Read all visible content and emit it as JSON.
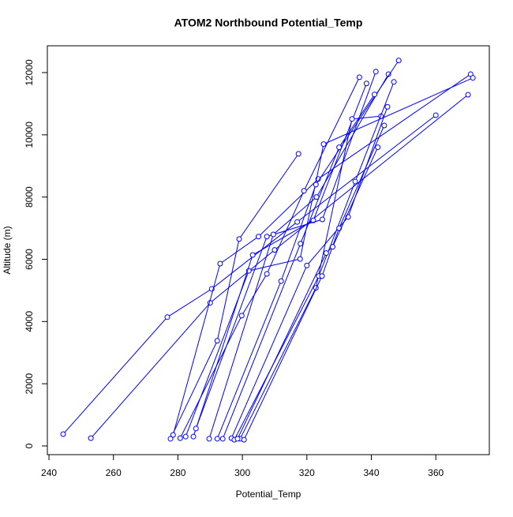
{
  "chart_data": {
    "type": "line",
    "title": "ATOM2 Northbound Potential_Temp",
    "xlabel": "Potential_Temp",
    "ylabel": "Altitude (m)",
    "xlim": [
      239.5,
      376.6
    ],
    "ylim": [
      -279,
      12862
    ],
    "xticks": [
      240,
      260,
      280,
      300,
      320,
      340,
      360
    ],
    "yticks": [
      0,
      2000,
      4000,
      6000,
      8000,
      10000,
      12000
    ],
    "marker": "circle",
    "grid": false,
    "series": [
      {
        "color": "#0000ff",
        "x": [
          244.4,
          276.7,
          290.5,
          317,
          360
        ],
        "values": [
          380,
          4140,
          5050,
          7200,
          10630
        ]
      },
      {
        "color": "#0000ff",
        "x": [
          253,
          290,
          310,
          370
        ],
        "values": [
          250,
          4600,
          6300,
          11290
        ]
      },
      {
        "color": "#0000ff",
        "x": [
          277.7,
          292.2,
          299,
          317.4
        ],
        "values": [
          230,
          3380,
          6650,
          9390
        ]
      },
      {
        "color": "#0000ff",
        "x": [
          278.5,
          293.1,
          305,
          323.5,
          370.8
        ],
        "values": [
          355,
          5860,
          6730,
          8580,
          11950
        ]
      },
      {
        "color": "#0000ff",
        "x": [
          280.7,
          299.8,
          307.6,
          319.1,
          336.3
        ],
        "values": [
          250,
          4190,
          5530,
          8200,
          11850
        ]
      },
      {
        "color": "#0000ff",
        "x": [
          282.4,
          302,
          317.9,
          325.2,
          371.5
        ],
        "values": [
          300,
          5630,
          6010,
          9700,
          11830
        ]
      },
      {
        "color": "#0000ff",
        "x": [
          284.8,
          303.2,
          322,
          338.5
        ],
        "values": [
          300,
          6140,
          7250,
          11650
        ]
      },
      {
        "color": "#0000ff",
        "x": [
          285.6,
          307.6,
          324.8,
          341.4
        ],
        "values": [
          560,
          6730,
          7280,
          12030
        ]
      },
      {
        "color": "#0000ff",
        "x": [
          289.7,
          309.6,
          323,
          345.3
        ],
        "values": [
          230,
          6800,
          8000,
          11950
        ]
      },
      {
        "color": "#0000ff",
        "x": [
          292.2,
          312,
          322.8,
          348.5
        ],
        "values": [
          230,
          5300,
          8400,
          12390
        ]
      },
      {
        "color": "#0000ff",
        "x": [
          293.9,
          318,
          330,
          341
        ],
        "values": [
          230,
          6500,
          9600,
          11300
        ]
      },
      {
        "color": "#0000ff",
        "x": [
          296.6,
          320,
          332.8,
          345
        ],
        "values": [
          250,
          5800,
          7360,
          10900
        ]
      },
      {
        "color": "#0000ff",
        "x": [
          299.3,
          322.8,
          334,
          343
        ],
        "values": [
          230,
          5080,
          10510,
          10600
        ]
      },
      {
        "color": "#0000ff",
        "x": [
          297.5,
          323.7,
          335,
          347
        ],
        "values": [
          200,
          5460,
          8500,
          11700
        ]
      },
      {
        "color": "#0000ff",
        "x": [
          300.5,
          324.7,
          330,
          344
        ],
        "values": [
          200,
          5460,
          7000,
          10300
        ]
      },
      {
        "color": "#0000ff",
        "x": [
          298.5,
          326,
          328,
          342
        ],
        "values": [
          230,
          6200,
          6400,
          9600
        ]
      }
    ]
  }
}
